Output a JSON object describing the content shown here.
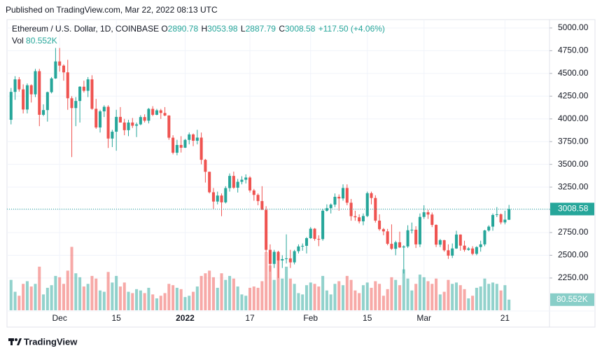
{
  "chart_data": {
    "type": "candlestick",
    "published": "Published on TradingView.com, Mar 22, 2022 08:13 UTC",
    "brand": "TradingView",
    "symbol": "Ethereum / U.S. Dollar, 1D, COINBASE",
    "open_prefix": "O",
    "high_prefix": "H",
    "low_prefix": "L",
    "close_prefix": "C",
    "change": "+117.50 (+4.06%)",
    "volume_title": "Vol",
    "volume_last_label": "80.552K",
    "up_color": "#26a69a",
    "down_color": "#ef5350",
    "grid": true,
    "x": [
      "2021-11-19",
      "2021-11-20",
      "2021-11-21",
      "2021-11-22",
      "2021-11-23",
      "2021-11-24",
      "2021-11-25",
      "2021-11-26",
      "2021-11-27",
      "2021-11-28",
      "2021-11-29",
      "2021-11-30",
      "2021-12-01",
      "2021-12-02",
      "2021-12-03",
      "2021-12-04",
      "2021-12-05",
      "2021-12-06",
      "2021-12-07",
      "2021-12-08",
      "2021-12-09",
      "2021-12-10",
      "2021-12-11",
      "2021-12-12",
      "2021-12-13",
      "2021-12-14",
      "2021-12-15",
      "2021-12-16",
      "2021-12-17",
      "2021-12-18",
      "2021-12-19",
      "2021-12-20",
      "2021-12-21",
      "2021-12-22",
      "2021-12-23",
      "2021-12-24",
      "2021-12-25",
      "2021-12-26",
      "2021-12-27",
      "2021-12-28",
      "2021-12-29",
      "2021-12-30",
      "2021-12-31",
      "2022-01-01",
      "2022-01-02",
      "2022-01-03",
      "2022-01-04",
      "2022-01-05",
      "2022-01-06",
      "2022-01-07",
      "2022-01-08",
      "2022-01-09",
      "2022-01-10",
      "2022-01-11",
      "2022-01-12",
      "2022-01-13",
      "2022-01-14",
      "2022-01-15",
      "2022-01-16",
      "2022-01-17",
      "2022-01-18",
      "2022-01-19",
      "2022-01-20",
      "2022-01-21",
      "2022-01-22",
      "2022-01-23",
      "2022-01-24",
      "2022-01-25",
      "2022-01-26",
      "2022-01-27",
      "2022-01-28",
      "2022-01-29",
      "2022-01-30",
      "2022-01-31",
      "2022-02-01",
      "2022-02-02",
      "2022-02-03",
      "2022-02-04",
      "2022-02-05",
      "2022-02-06",
      "2022-02-07",
      "2022-02-08",
      "2022-02-09",
      "2022-02-10",
      "2022-02-11",
      "2022-02-12",
      "2022-02-13",
      "2022-02-14",
      "2022-02-15",
      "2022-02-16",
      "2022-02-17",
      "2022-02-18",
      "2022-02-19",
      "2022-02-20",
      "2022-02-21",
      "2022-02-22",
      "2022-02-23",
      "2022-02-24",
      "2022-02-25",
      "2022-02-26",
      "2022-02-27",
      "2022-02-28",
      "2022-03-01",
      "2022-03-02",
      "2022-03-03",
      "2022-03-04",
      "2022-03-05",
      "2022-03-06",
      "2022-03-07",
      "2022-03-08",
      "2022-03-09",
      "2022-03-10",
      "2022-03-11",
      "2022-03-12",
      "2022-03-13",
      "2022-03-14",
      "2022-03-15",
      "2022-03-16",
      "2022-03-17",
      "2022-03-18",
      "2022-03-19",
      "2022-03-20",
      "2022-03-21",
      "2022-03-22"
    ],
    "open": [
      3990,
      4297,
      4435,
      4325,
      4103,
      4370,
      4270,
      4525,
      4045,
      4097,
      4294,
      4445,
      4632,
      4586,
      4512,
      4227,
      4119,
      4197,
      4354,
      4309,
      4435,
      4111,
      3906,
      4083,
      4133,
      3784,
      3859,
      4022,
      3960,
      3876,
      3960,
      3925,
      3940,
      4020,
      3980,
      4110,
      4045,
      4094,
      4065,
      4037,
      3793,
      3628,
      3713,
      3683,
      3769,
      3829,
      3760,
      3794,
      3550,
      3418,
      3193,
      3091,
      3157,
      3082,
      3239,
      3373,
      3243,
      3308,
      3331,
      3355,
      3213,
      3164,
      3096,
      3000,
      2560,
      2405,
      2538,
      2443,
      2458,
      2466,
      2422,
      2545,
      2597,
      2604,
      2688,
      2792,
      2680,
      2678,
      2990,
      3018,
      3057,
      3143,
      3125,
      3240,
      3078,
      2930,
      2918,
      2873,
      2932,
      3183,
      3130,
      2881,
      2787,
      2763,
      2626,
      2571,
      2643,
      2586,
      2597,
      2775,
      2781,
      2620,
      2922,
      2973,
      2948,
      2834,
      2617,
      2666,
      2555,
      2496,
      2575,
      2728,
      2606,
      2560,
      2575,
      2516,
      2590,
      2620,
      2773,
      2815,
      2943,
      2951,
      2862,
      2890.78
    ],
    "high": [
      4340,
      4470,
      4460,
      4380,
      4390,
      4380,
      4550,
      4550,
      4160,
      4300,
      4460,
      4780,
      4780,
      4600,
      4650,
      4250,
      4240,
      4360,
      4420,
      4460,
      4480,
      4220,
      4100,
      4150,
      4150,
      3880,
      4100,
      4130,
      4000,
      3990,
      4010,
      3960,
      4040,
      4050,
      4120,
      4140,
      4110,
      4110,
      4130,
      4040,
      3820,
      3770,
      3810,
      3780,
      3850,
      3840,
      3880,
      3850,
      3560,
      3420,
      3240,
      3200,
      3180,
      3260,
      3400,
      3420,
      3340,
      3370,
      3390,
      3370,
      3230,
      3180,
      3260,
      3040,
      2620,
      2560,
      2550,
      2500,
      2730,
      2560,
      2560,
      2620,
      2630,
      2700,
      2810,
      2800,
      2720,
      3010,
      3060,
      3070,
      3180,
      3170,
      3280,
      3280,
      3120,
      2990,
      2950,
      2960,
      3200,
      3200,
      3160,
      2950,
      2800,
      2790,
      2840,
      2660,
      2760,
      2610,
      2830,
      2860,
      2820,
      2960,
      3050,
      3000,
      2970,
      2840,
      2680,
      2670,
      2620,
      2630,
      2770,
      2730,
      2660,
      2590,
      2600,
      2600,
      2660,
      2780,
      2830,
      2960,
      3030,
      2960,
      2990,
      3053.98
    ],
    "low": [
      3940,
      4210,
      4300,
      4060,
      4060,
      4180,
      4240,
      3920,
      4030,
      3970,
      4280,
      4440,
      4520,
      4420,
      4100,
      3580,
      3920,
      3960,
      4290,
      4240,
      4100,
      3890,
      3850,
      4020,
      3680,
      3690,
      3650,
      3960,
      3820,
      3810,
      3900,
      3800,
      3930,
      3960,
      3950,
      4030,
      4040,
      4000,
      4030,
      3770,
      3610,
      3600,
      3630,
      3680,
      3720,
      3700,
      3720,
      3500,
      3300,
      3180,
      3010,
      3060,
      2930,
      3070,
      3200,
      3230,
      3190,
      3280,
      3290,
      3190,
      3100,
      3050,
      3000,
      2530,
      2320,
      2360,
      2250,
      2360,
      2410,
      2360,
      2400,
      2520,
      2550,
      2520,
      2680,
      2660,
      2600,
      2660,
      2980,
      2960,
      3030,
      2990,
      3100,
      3050,
      2880,
      2880,
      2850,
      2830,
      2920,
      3060,
      2860,
      2770,
      2720,
      2610,
      2560,
      2500,
      2580,
      2300,
      2580,
      2740,
      2580,
      2590,
      2900,
      2900,
      2810,
      2590,
      2590,
      2540,
      2460,
      2470,
      2570,
      2550,
      2540,
      2550,
      2500,
      2500,
      2540,
      2600,
      2760,
      2770,
      2920,
      2840,
      2840,
      2887.79
    ],
    "close": [
      4297,
      4435,
      4325,
      4103,
      4370,
      4270,
      4525,
      4045,
      4097,
      4294,
      4445,
      4632,
      4586,
      4512,
      4227,
      4119,
      4197,
      4354,
      4309,
      4435,
      4111,
      3906,
      4083,
      4133,
      3784,
      3859,
      4022,
      3960,
      3876,
      3960,
      3925,
      3940,
      4020,
      3980,
      4110,
      4045,
      4094,
      4065,
      4037,
      3793,
      3628,
      3713,
      3683,
      3769,
      3829,
      3760,
      3794,
      3550,
      3418,
      3193,
      3091,
      3157,
      3082,
      3239,
      3373,
      3243,
      3308,
      3331,
      3355,
      3213,
      3164,
      3096,
      3000,
      2560,
      2405,
      2538,
      2443,
      2458,
      2466,
      2422,
      2545,
      2597,
      2604,
      2688,
      2792,
      2680,
      2678,
      2990,
      3018,
      3057,
      3143,
      3125,
      3240,
      3078,
      2930,
      2918,
      2873,
      2932,
      3183,
      3130,
      2881,
      2787,
      2763,
      2626,
      2571,
      2643,
      2586,
      2597,
      2775,
      2781,
      2620,
      2922,
      2973,
      2948,
      2834,
      2617,
      2666,
      2555,
      2496,
      2575,
      2728,
      2606,
      2560,
      2575,
      2516,
      2590,
      2620,
      2773,
      2815,
      2943,
      2951,
      2862,
      2892,
      3008.58
    ],
    "volume": [
      230000,
      140000,
      110000,
      200000,
      220000,
      180000,
      200000,
      330000,
      120000,
      170000,
      190000,
      260000,
      250000,
      200000,
      300000,
      480000,
      280000,
      250000,
      180000,
      200000,
      260000,
      240000,
      150000,
      140000,
      290000,
      210000,
      260000,
      180000,
      210000,
      140000,
      130000,
      160000,
      150000,
      130000,
      170000,
      120000,
      90000,
      110000,
      130000,
      200000,
      190000,
      170000,
      160000,
      100000,
      110000,
      140000,
      180000,
      260000,
      280000,
      300000,
      250000,
      170000,
      280000,
      230000,
      260000,
      240000,
      180000,
      120000,
      110000,
      170000,
      180000,
      170000,
      220000,
      440000,
      340000,
      230000,
      380000,
      240000,
      330000,
      240000,
      200000,
      130000,
      120000,
      190000,
      210000,
      200000,
      180000,
      260000,
      150000,
      120000,
      200000,
      220000,
      190000,
      260000,
      230000,
      150000,
      130000,
      190000,
      210000,
      170000,
      220000,
      200000,
      110000,
      160000,
      250000,
      230000,
      190000,
      310000,
      240000,
      150000,
      200000,
      270000,
      250000,
      220000,
      200000,
      240000,
      120000,
      140000,
      230000,
      200000,
      210000,
      190000,
      160000,
      90000,
      110000,
      170000,
      180000,
      240000,
      200000,
      210000,
      200000,
      150000,
      190000,
      80552
    ],
    "xlim": [
      "2021-11-18",
      "2022-04-01"
    ],
    "xticks": [
      {
        "value": "2021-12-01",
        "label": "Dec"
      },
      {
        "value": "2021-12-15",
        "label": "15"
      },
      {
        "value": "2022-01-01",
        "label": "2022"
      },
      {
        "value": "2022-01-17",
        "label": "17"
      },
      {
        "value": "2022-02-01",
        "label": "Feb"
      },
      {
        "value": "2022-02-15",
        "label": "15"
      },
      {
        "value": "2022-03-01",
        "label": "Mar"
      },
      {
        "value": "2022-03-21",
        "label": "21"
      }
    ],
    "ylim": [
      1895,
      5092
    ],
    "yticks": [
      {
        "value": 2250,
        "label": "2250.00"
      },
      {
        "value": 2500,
        "label": "2500.00"
      },
      {
        "value": 2750,
        "label": "2750.00"
      },
      {
        "value": 3000,
        "label": "3000.00"
      },
      {
        "value": 3250,
        "label": "3250.00"
      },
      {
        "value": 3500,
        "label": "3500.00"
      },
      {
        "value": 3750,
        "label": "3750.00"
      },
      {
        "value": 4000,
        "label": "4000.00"
      },
      {
        "value": 4250,
        "label": "4250.00"
      },
      {
        "value": 4500,
        "label": "4500.00"
      },
      {
        "value": 4750,
        "label": "4750.00"
      },
      {
        "value": 5000,
        "label": "5000.00"
      }
    ],
    "volume_lim": [
      0,
      2200000
    ]
  }
}
